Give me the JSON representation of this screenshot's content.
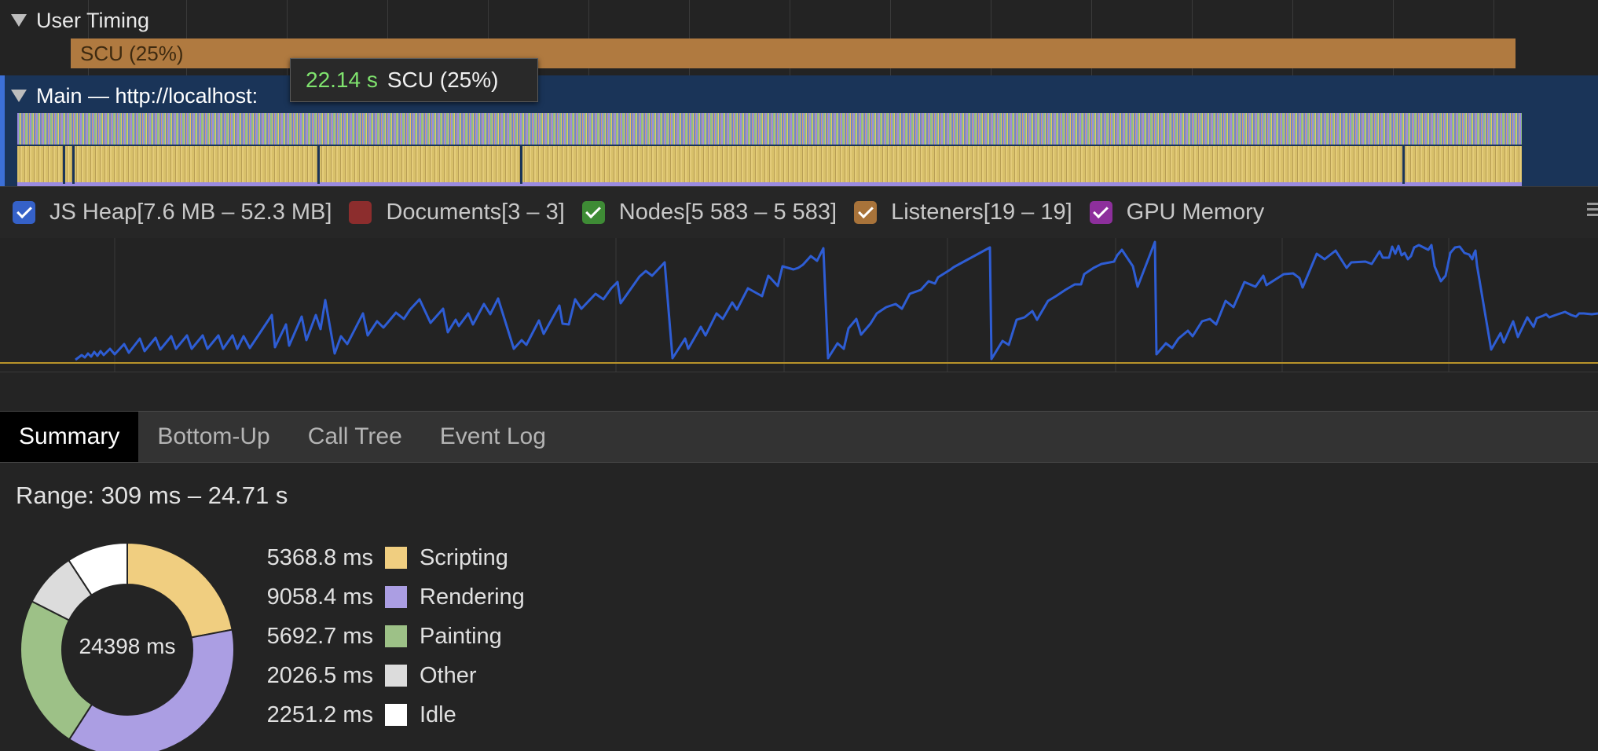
{
  "timeline": {
    "user_timing_label": "User Timing",
    "scu_bar_label": "SCU (25%)",
    "main_track_label": "Main — http://localhost:",
    "tooltip": {
      "time": "22.14 s",
      "name": "SCU (25%)"
    }
  },
  "counters": [
    {
      "label": "JS Heap[7.6 MB – 52.3 MB]",
      "color": "#3561c8",
      "checked": true
    },
    {
      "label": "Documents[3 – 3]",
      "color": "#8c2d2d",
      "checked": false
    },
    {
      "label": "Nodes[5 583 – 5 583]",
      "color": "#3e8b35",
      "checked": true
    },
    {
      "label": "Listeners[19 – 19]",
      "color": "#a8733a",
      "checked": true
    },
    {
      "label": "GPU Memory",
      "color": "#8d2f9c",
      "checked": true
    }
  ],
  "tabs": [
    {
      "label": "Summary",
      "active": true
    },
    {
      "label": "Bottom-Up",
      "active": false
    },
    {
      "label": "Call Tree",
      "active": false
    },
    {
      "label": "Event Log",
      "active": false
    }
  ],
  "summary": {
    "range": "Range: 309 ms – 24.71 s",
    "total": "24398 ms",
    "items": [
      {
        "value": "5368.8 ms",
        "label": "Scripting",
        "color": "#f0ce80",
        "ms": 5368.8
      },
      {
        "value": "9058.4 ms",
        "label": "Rendering",
        "color": "#ab9ee3",
        "ms": 9058.4
      },
      {
        "value": "5692.7 ms",
        "label": "Painting",
        "color": "#9dc187",
        "ms": 5692.7
      },
      {
        "value": "2026.5 ms",
        "label": "Other",
        "color": "#dcdcdc",
        "ms": 2026.5
      },
      {
        "value": "2251.2 ms",
        "label": "Idle",
        "color": "#ffffff",
        "ms": 2251.2
      }
    ]
  }
}
